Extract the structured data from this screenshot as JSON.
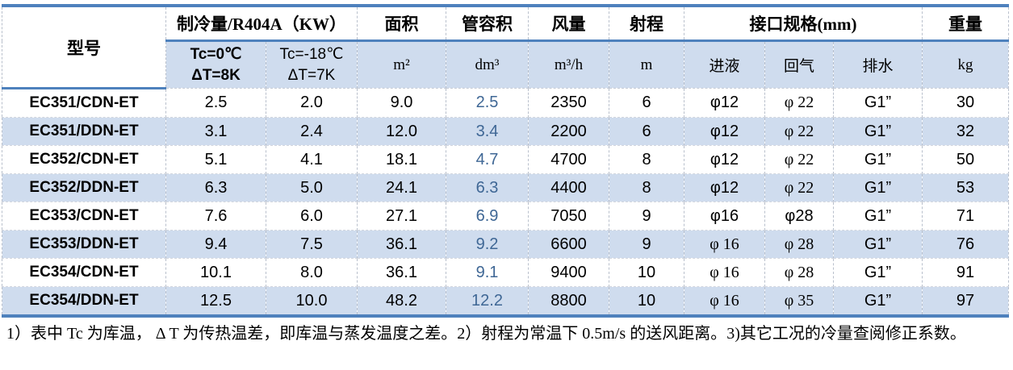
{
  "table": {
    "header": {
      "model": "型号",
      "cooling_group": "制冷量/R404A（KW）",
      "cooling_sub": [
        {
          "line1": "Tc=0℃",
          "line2": "ΔT=8K",
          "bold": true
        },
        {
          "line1": "Tc=-18℃",
          "line2": "ΔT=7K",
          "bold": false
        }
      ],
      "area": "面积",
      "area_unit": "m²",
      "tube_volume": "管容积",
      "tube_volume_unit": "dm³",
      "air_flow": "风量",
      "air_flow_unit": "m³/h",
      "throw": "射程",
      "throw_unit": "m",
      "connections_group": "接口规格(mm)",
      "connections_sub": [
        "进液",
        "回气",
        "排水"
      ],
      "weight": "重量",
      "weight_unit": "kg"
    },
    "rows": [
      {
        "model": "EC351/CDN-ET",
        "cooling_tc0": "2.5",
        "cooling_tc18": "2.0",
        "area": "9.0",
        "tube_volume": "2.5",
        "air_flow": "2350",
        "throw": "6",
        "inlet": "φ12",
        "return": "φ 22",
        "drain": "G1”",
        "weight": "30"
      },
      {
        "model": "EC351/DDN-ET",
        "cooling_tc0": "3.1",
        "cooling_tc18": "2.4",
        "area": "12.0",
        "tube_volume": "3.4",
        "air_flow": "2200",
        "throw": "6",
        "inlet": "φ12",
        "return": "φ 22",
        "drain": "G1”",
        "weight": "32"
      },
      {
        "model": "EC352/CDN-ET",
        "cooling_tc0": "5.1",
        "cooling_tc18": "4.1",
        "area": "18.1",
        "tube_volume": "4.7",
        "air_flow": "4700",
        "throw": "8",
        "inlet": "φ12",
        "return": "φ 22",
        "drain": "G1”",
        "weight": "50"
      },
      {
        "model": "EC352/DDN-ET",
        "cooling_tc0": "6.3",
        "cooling_tc18": "5.0",
        "area": "24.1",
        "tube_volume": "6.3",
        "air_flow": "4400",
        "throw": "8",
        "inlet": "φ12",
        "return": "φ 22",
        "drain": "G1”",
        "weight": "53"
      },
      {
        "model": "EC353/CDN-ET",
        "cooling_tc0": "7.6",
        "cooling_tc18": "6.0",
        "area": "27.1",
        "tube_volume": "6.9",
        "air_flow": "7050",
        "throw": "9",
        "inlet": "φ16",
        "return": "φ28",
        "drain": "G1”",
        "weight": "71"
      },
      {
        "model": "EC353/DDN-ET",
        "cooling_tc0": "9.4",
        "cooling_tc18": "7.5",
        "area": "36.1",
        "tube_volume": "9.2",
        "air_flow": "6600",
        "throw": "9",
        "inlet": "φ 16",
        "return": "φ 28",
        "drain": "G1”",
        "weight": "76"
      },
      {
        "model": "EC354/CDN-ET",
        "cooling_tc0": "10.1",
        "cooling_tc18": "8.0",
        "area": "36.1",
        "tube_volume": "9.1",
        "air_flow": "9400",
        "throw": "10",
        "inlet": "φ 16",
        "return": "φ 28",
        "drain": "G1”",
        "weight": "91"
      },
      {
        "model": "EC354/DDN-ET",
        "cooling_tc0": "12.5",
        "cooling_tc18": "10.0",
        "area": "48.2",
        "tube_volume": "12.2",
        "air_flow": "8800",
        "throw": "10",
        "inlet": "φ 16",
        "return": "φ 35",
        "drain": "G1”",
        "weight": "97"
      }
    ]
  },
  "footnote": "1）表中 Tc 为库温， Δ T 为传热温差，即库温与蒸发温度之差。2）射程为常温下 0.5m/s 的送风距离。3)其它工况的冷量查阅修正系数。",
  "colors": {
    "accent_blue": "#4e81bd",
    "band_blue": "#cfdcee",
    "tube_value_blue": "#3f6795"
  }
}
